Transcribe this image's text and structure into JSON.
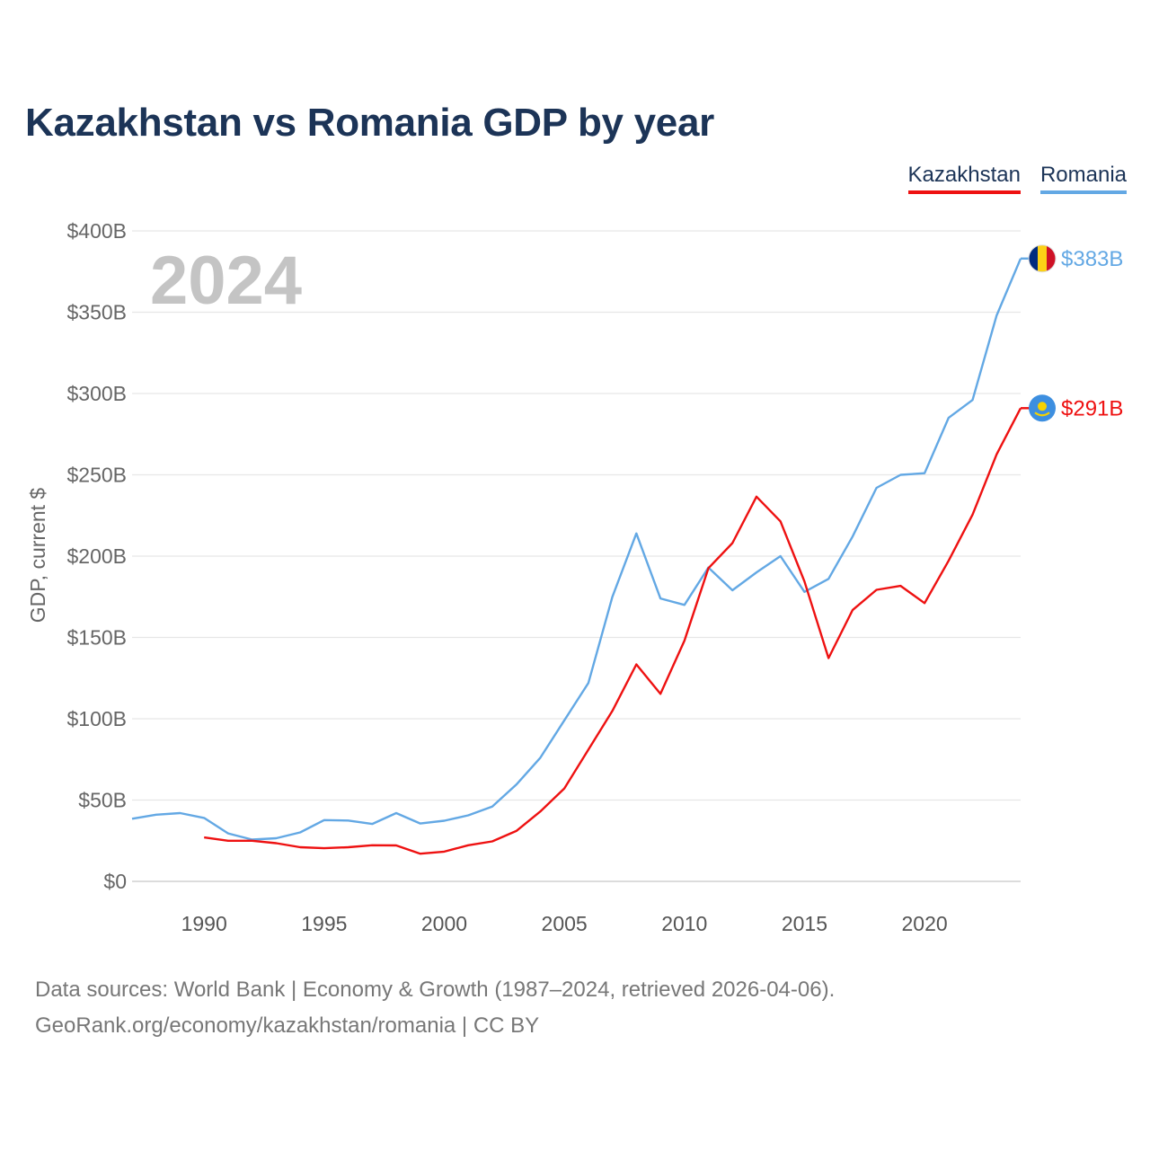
{
  "title": "Kazakhstan vs Romania GDP by year",
  "legend": [
    {
      "label": "Kazakhstan",
      "color": "#ee1111"
    },
    {
      "label": "Romania",
      "color": "#63a8e4"
    }
  ],
  "year_watermark": "2024",
  "footer": {
    "line1": "Data sources: World Bank | Economy & Growth (1987–2024, retrieved 2026-04-06).",
    "line2": "GeoRank.org/economy/kazakhstan/romania | CC BY"
  },
  "chart_data": {
    "type": "line",
    "title": "Kazakhstan vs Romania GDP by year",
    "xlabel": "",
    "ylabel": "GDP, current $",
    "xlim": [
      1987,
      2024
    ],
    "ylim": [
      0,
      400
    ],
    "y_unit": "billion USD",
    "y_ticks": [
      {
        "value": 0,
        "label": "$0"
      },
      {
        "value": 50,
        "label": "$50B"
      },
      {
        "value": 100,
        "label": "$100B"
      },
      {
        "value": 150,
        "label": "$150B"
      },
      {
        "value": 200,
        "label": "$200B"
      },
      {
        "value": 250,
        "label": "$250B"
      },
      {
        "value": 300,
        "label": "$300B"
      },
      {
        "value": 350,
        "label": "$350B"
      },
      {
        "value": 400,
        "label": "$400B"
      }
    ],
    "x_ticks": [
      {
        "value": 1990,
        "label": "1990"
      },
      {
        "value": 1995,
        "label": "1995"
      },
      {
        "value": 2000,
        "label": "2000"
      },
      {
        "value": 2005,
        "label": "2005"
      },
      {
        "value": 2010,
        "label": "2010"
      },
      {
        "value": 2015,
        "label": "2015"
      },
      {
        "value": 2020,
        "label": "2020"
      }
    ],
    "grid": true,
    "legend_position": "top-right",
    "series": [
      {
        "name": "Romania",
        "color": "#63a8e4",
        "end_label": "$383B",
        "flag": "romania-flag-icon",
        "x": [
          1987,
          1988,
          1989,
          1990,
          1991,
          1992,
          1993,
          1994,
          1995,
          1996,
          1997,
          1998,
          1999,
          2000,
          2001,
          2002,
          2003,
          2004,
          2005,
          2006,
          2007,
          2008,
          2009,
          2010,
          2011,
          2012,
          2013,
          2014,
          2015,
          2016,
          2017,
          2018,
          2019,
          2020,
          2021,
          2022,
          2023,
          2024
        ],
        "values": [
          38.5,
          41,
          42,
          39,
          29.5,
          25.7,
          26.5,
          30.1,
          37.7,
          37.4,
          35.3,
          42,
          35.6,
          37.3,
          40.6,
          46,
          59.5,
          76,
          99,
          122,
          175,
          214,
          174,
          170,
          193,
          179,
          190,
          200,
          178,
          186,
          212,
          242,
          250,
          251,
          285,
          296,
          348,
          383
        ]
      },
      {
        "name": "Kazakhstan",
        "color": "#ee1111",
        "end_label": "$291B",
        "flag": "kazakhstan-flag-icon",
        "x": [
          1990,
          1991,
          1992,
          1993,
          1994,
          1995,
          1996,
          1997,
          1998,
          1999,
          2000,
          2001,
          2002,
          2003,
          2004,
          2005,
          2006,
          2007,
          2008,
          2009,
          2010,
          2011,
          2012,
          2013,
          2014,
          2015,
          2016,
          2017,
          2018,
          2019,
          2020,
          2021,
          2022,
          2023,
          2024
        ],
        "values": [
          27,
          25,
          25,
          23.5,
          21,
          20.4,
          21,
          22.2,
          22.1,
          17,
          18.3,
          22.2,
          24.6,
          31,
          43,
          57.1,
          81,
          104.8,
          133.4,
          115.3,
          148,
          192.6,
          208,
          236.6,
          221.4,
          184.4,
          137.3,
          166.8,
          179.3,
          181.7,
          171.1,
          197.1,
          225.5,
          262.6,
          291
        ]
      }
    ]
  }
}
